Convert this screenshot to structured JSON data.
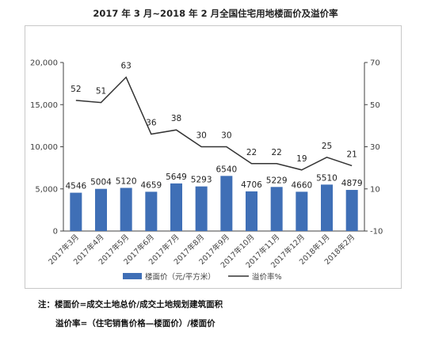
{
  "chart_data": {
    "type": "bar",
    "title": "2017 年 3 月~2018 年 2 月全国住宅用地楼面价及溢价率",
    "categories": [
      "2017年3月",
      "2017年4月",
      "2017年5月",
      "2017年6月",
      "2017年7月",
      "2017年8月",
      "2017年9月",
      "2017年10月",
      "2017年11月",
      "2017年12月",
      "2018年1月",
      "2018年2月"
    ],
    "series": [
      {
        "name": "楼面价（元/平方米）",
        "type": "bar",
        "axis": "left",
        "color": "#3f6fb6",
        "values": [
          4546,
          5004,
          5120,
          4659,
          5649,
          5293,
          6540,
          4706,
          5229,
          4660,
          5510,
          4879
        ]
      },
      {
        "name": "溢价率%",
        "type": "line",
        "axis": "right",
        "color": "#333333",
        "values": [
          52,
          51,
          63,
          36,
          38,
          30,
          30,
          22,
          22,
          19,
          25,
          21
        ]
      }
    ],
    "y_left": {
      "min": 0,
      "max": 20000,
      "ticks": [
        "0",
        "5,000",
        "10,000",
        "15,000",
        "20,000"
      ]
    },
    "y_right": {
      "min": -10,
      "max": 70,
      "ticks": [
        "-10",
        "10",
        "30",
        "50",
        "70"
      ]
    },
    "legend": "bottom",
    "grid": false
  },
  "notes": {
    "line1": "注：楼面价=成交土地总价/成交土地规划建筑面积",
    "line2": "溢价率=（住宅销售价格—楼面价）/楼面价"
  }
}
